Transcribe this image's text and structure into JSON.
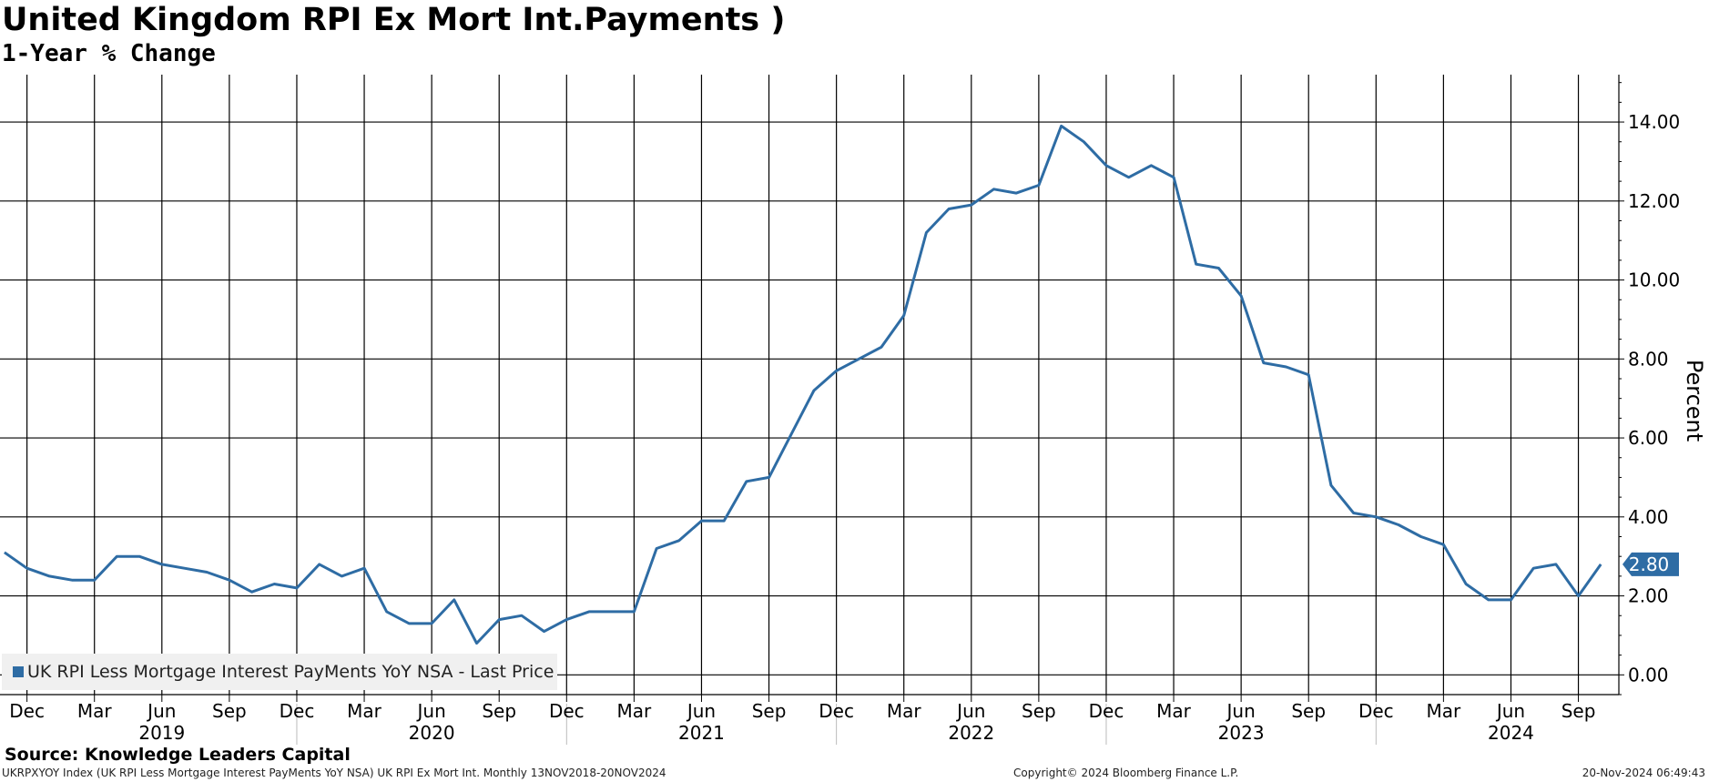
{
  "chart_data": {
    "type": "line",
    "title": "United Kingdom RPI Ex Mort Int.Payments )",
    "subtitle": "1-Year % Change",
    "ylabel": "Percent",
    "ylim": [
      -0.5,
      15.2
    ],
    "yticks": [
      0,
      2,
      4,
      6,
      8,
      10,
      12,
      14
    ],
    "ytick_labels": [
      "0.00",
      "2.00",
      "4.00",
      "6.00",
      "8.00",
      "10.00",
      "12.00",
      "14.00"
    ],
    "grid": true,
    "legend_position": "bottom-left",
    "x_start": "2018-11",
    "x_end": "2024-11",
    "month_ticks": [
      {
        "date": "2018-12",
        "label": "Dec"
      },
      {
        "date": "2019-03",
        "label": "Mar"
      },
      {
        "date": "2019-06",
        "label": "Jun"
      },
      {
        "date": "2019-09",
        "label": "Sep"
      },
      {
        "date": "2019-12",
        "label": "Dec"
      },
      {
        "date": "2020-03",
        "label": "Mar"
      },
      {
        "date": "2020-06",
        "label": "Jun"
      },
      {
        "date": "2020-09",
        "label": "Sep"
      },
      {
        "date": "2020-12",
        "label": "Dec"
      },
      {
        "date": "2021-03",
        "label": "Mar"
      },
      {
        "date": "2021-06",
        "label": "Jun"
      },
      {
        "date": "2021-09",
        "label": "Sep"
      },
      {
        "date": "2021-12",
        "label": "Dec"
      },
      {
        "date": "2022-03",
        "label": "Mar"
      },
      {
        "date": "2022-06",
        "label": "Jun"
      },
      {
        "date": "2022-09",
        "label": "Sep"
      },
      {
        "date": "2022-12",
        "label": "Dec"
      },
      {
        "date": "2023-03",
        "label": "Mar"
      },
      {
        "date": "2023-06",
        "label": "Jun"
      },
      {
        "date": "2023-09",
        "label": "Sep"
      },
      {
        "date": "2023-12",
        "label": "Dec"
      },
      {
        "date": "2024-03",
        "label": "Mar"
      },
      {
        "date": "2024-06",
        "label": "Jun"
      },
      {
        "date": "2024-09",
        "label": "Sep"
      }
    ],
    "year_labels": [
      {
        "date": "2019-06",
        "label": "2019"
      },
      {
        "date": "2020-06",
        "label": "2020"
      },
      {
        "date": "2021-06",
        "label": "2021"
      },
      {
        "date": "2022-06",
        "label": "2022"
      },
      {
        "date": "2023-06",
        "label": "2023"
      },
      {
        "date": "2024-06",
        "label": "2024"
      }
    ],
    "year_separators": [
      "2019-12",
      "2020-12",
      "2021-12",
      "2022-12",
      "2023-12"
    ],
    "series": [
      {
        "name": "UK RPI Less Mortgage Interest PayMents YoY NSA - Last Price",
        "color": "#2e6ca4",
        "x": [
          "2018-11",
          "2018-12",
          "2019-01",
          "2019-02",
          "2019-03",
          "2019-04",
          "2019-05",
          "2019-06",
          "2019-07",
          "2019-08",
          "2019-09",
          "2019-10",
          "2019-11",
          "2019-12",
          "2020-01",
          "2020-02",
          "2020-03",
          "2020-04",
          "2020-05",
          "2020-06",
          "2020-07",
          "2020-08",
          "2020-09",
          "2020-10",
          "2020-11",
          "2020-12",
          "2021-01",
          "2021-02",
          "2021-03",
          "2021-04",
          "2021-05",
          "2021-06",
          "2021-07",
          "2021-08",
          "2021-09",
          "2021-10",
          "2021-11",
          "2021-12",
          "2022-01",
          "2022-02",
          "2022-03",
          "2022-04",
          "2022-05",
          "2022-06",
          "2022-07",
          "2022-08",
          "2022-09",
          "2022-10",
          "2022-11",
          "2022-12",
          "2023-01",
          "2023-02",
          "2023-03",
          "2023-04",
          "2023-05",
          "2023-06",
          "2023-07",
          "2023-08",
          "2023-09",
          "2023-10",
          "2023-11",
          "2023-12",
          "2024-01",
          "2024-02",
          "2024-03",
          "2024-04",
          "2024-05",
          "2024-06",
          "2024-07",
          "2024-08",
          "2024-09",
          "2024-10"
        ],
        "y": [
          3.1,
          2.7,
          2.5,
          2.4,
          2.4,
          3.0,
          3.0,
          2.8,
          2.7,
          2.6,
          2.4,
          2.1,
          2.3,
          2.2,
          2.8,
          2.5,
          2.7,
          1.6,
          1.3,
          1.3,
          1.9,
          0.8,
          1.4,
          1.5,
          1.1,
          1.4,
          1.6,
          1.6,
          1.6,
          3.2,
          3.4,
          3.9,
          3.9,
          4.9,
          5.0,
          6.1,
          7.2,
          7.7,
          8.0,
          8.3,
          9.1,
          11.2,
          11.8,
          11.9,
          12.3,
          12.2,
          12.4,
          13.9,
          13.5,
          12.9,
          12.6,
          12.9,
          12.6,
          10.4,
          10.3,
          9.6,
          7.9,
          7.8,
          7.6,
          4.8,
          4.1,
          4.0,
          3.8,
          3.5,
          3.3,
          2.3,
          1.9,
          1.9,
          2.7,
          2.8,
          2.0,
          2.8
        ]
      }
    ],
    "last_value": 2.8,
    "last_value_label": "2.80"
  },
  "source": "Source: Knowledge Leaders Capital",
  "footer": {
    "ticker": "UKRPXYOY Index (UK RPI Less Mortgage Interest PayMents YoY NSA) UK RPI Ex Mort Int.  Monthly 13NOV2018-20NOV2024",
    "copyright": "Copyright© 2024 Bloomberg Finance L.P.",
    "timestamp": "20-Nov-2024 06:49:43"
  }
}
